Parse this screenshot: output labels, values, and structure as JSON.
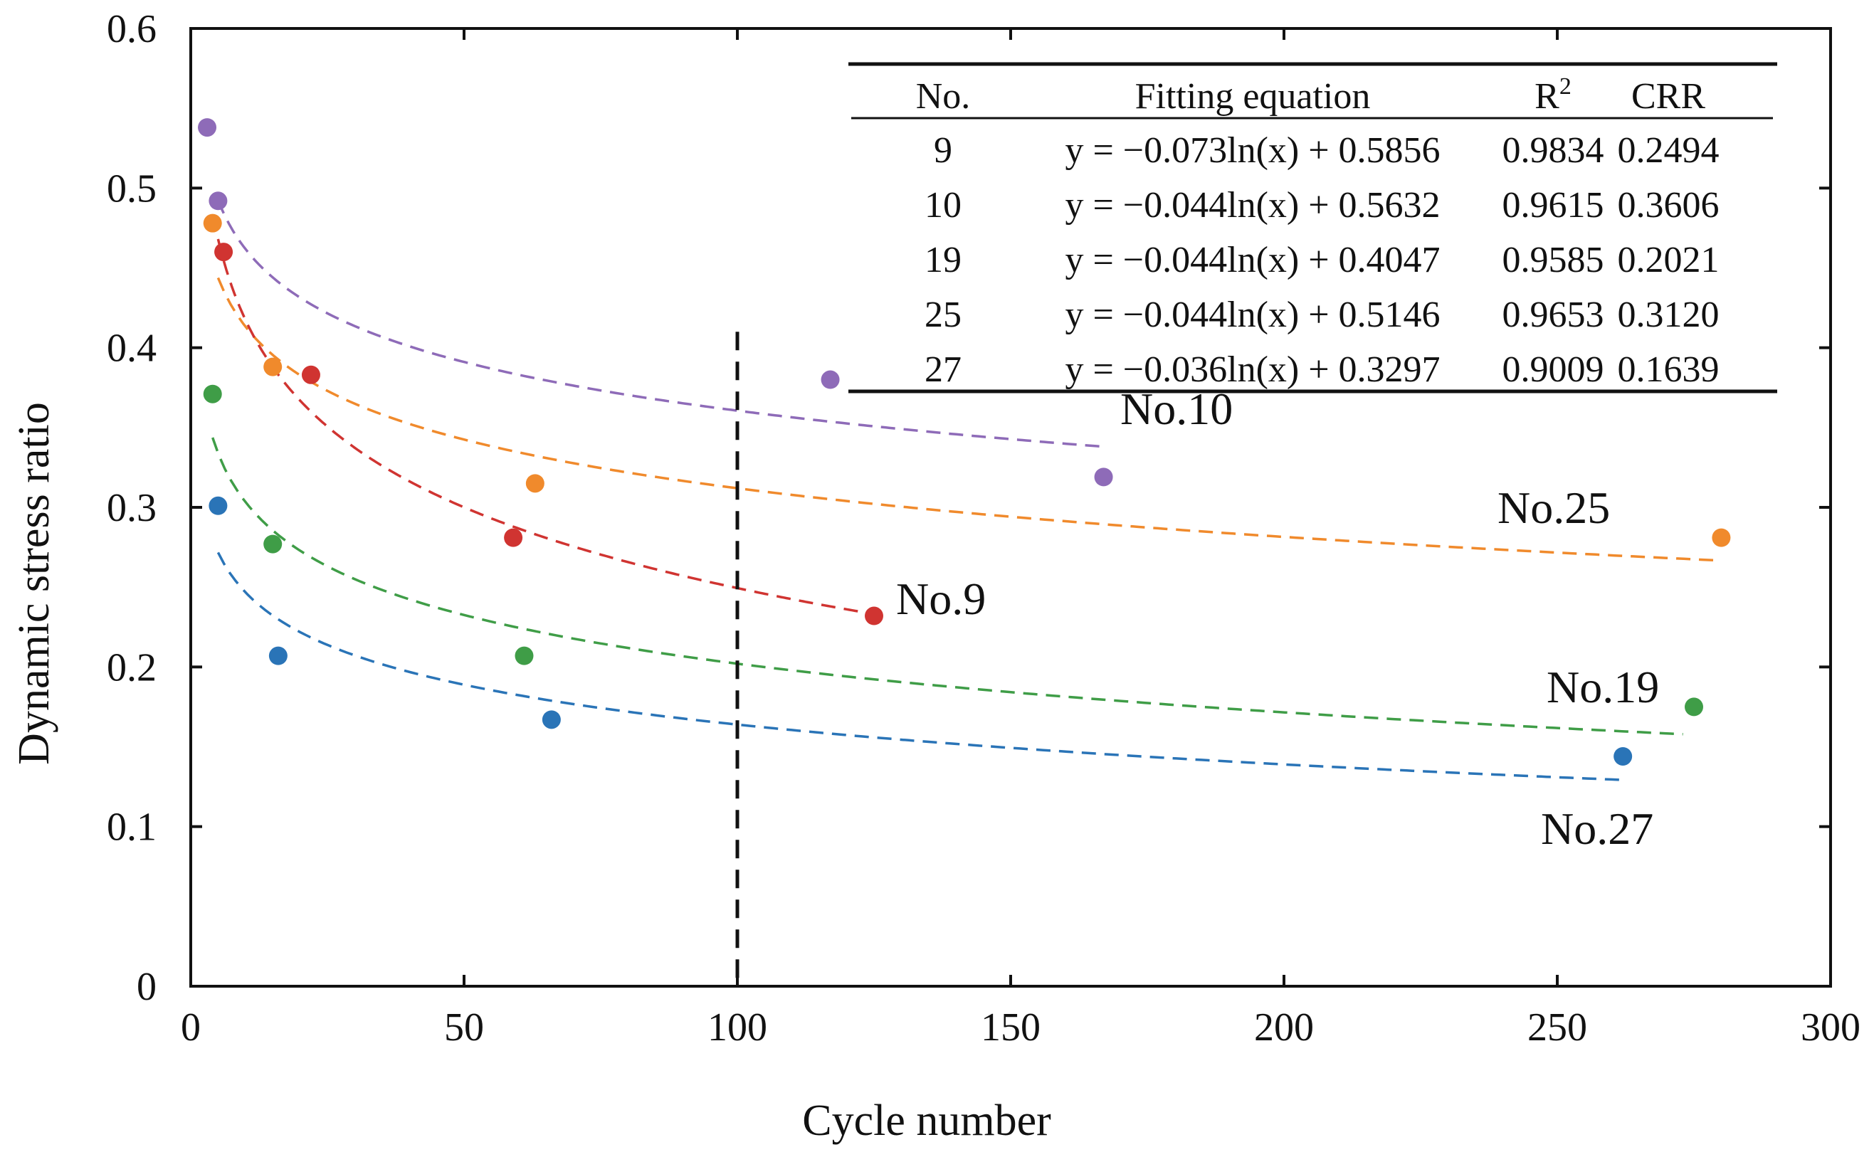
{
  "chart_data": {
    "type": "scatter",
    "title": "",
    "xlabel": "Cycle number",
    "ylabel": "Dynamic stress ratio",
    "xlim": [
      0,
      300
    ],
    "ylim": [
      0,
      0.6
    ],
    "xticks": [
      0,
      50,
      100,
      150,
      200,
      250,
      300
    ],
    "yticks": [
      0,
      0.1,
      0.2,
      0.3,
      0.4,
      0.5,
      0.6
    ],
    "xtick_labels": [
      "0",
      "50",
      "100",
      "150",
      "200",
      "250",
      "300"
    ],
    "ytick_labels": [
      "0",
      "0.1",
      "0.2",
      "0.3",
      "0.4",
      "0.5",
      "0.6"
    ],
    "reference_line_x": 100,
    "series": [
      {
        "name": "No.10",
        "label": "No.10",
        "color": "#8e6bb8",
        "points": [
          [
            3,
            0.538
          ],
          [
            5,
            0.492
          ],
          [
            117,
            0.38
          ],
          [
            167,
            0.319
          ]
        ],
        "fit": {
          "a": -0.044,
          "b": 0.5632,
          "x_from": 5,
          "x_to": 167
        }
      },
      {
        "name": "No.25",
        "label": "No.25",
        "color": "#f08a2c",
        "points": [
          [
            4,
            0.478
          ],
          [
            15,
            0.388
          ],
          [
            63,
            0.315
          ],
          [
            280,
            0.281
          ]
        ],
        "fit": {
          "a": -0.044,
          "b": 0.5146,
          "x_from": 5,
          "x_to": 280
        }
      },
      {
        "name": "No.9",
        "label": "No.9",
        "color": "#d03431",
        "points": [
          [
            6,
            0.46
          ],
          [
            22,
            0.383
          ],
          [
            59,
            0.281
          ],
          [
            125,
            0.232
          ]
        ],
        "fit": {
          "a": -0.073,
          "b": 0.5856,
          "x_from": 5,
          "x_to": 125
        }
      },
      {
        "name": "No.19",
        "label": "No.19",
        "color": "#3f9d47",
        "points": [
          [
            4,
            0.371
          ],
          [
            15,
            0.277
          ],
          [
            61,
            0.207
          ],
          [
            275,
            0.175
          ]
        ],
        "fit": {
          "a": -0.044,
          "b": 0.4047,
          "x_from": 4,
          "x_to": 273
        }
      },
      {
        "name": "No.27",
        "label": "No.27",
        "color": "#2a74b7",
        "points": [
          [
            5,
            0.301
          ],
          [
            16,
            0.207
          ],
          [
            66,
            0.167
          ],
          [
            262,
            0.144
          ]
        ],
        "fit": {
          "a": -0.036,
          "b": 0.3297,
          "x_from": 5,
          "x_to": 262
        }
      }
    ],
    "table": {
      "headers": [
        "No.",
        "Fitting equation",
        "R",
        "CRR"
      ],
      "r_superscript": "2",
      "rows": [
        [
          "9",
          "y = −0.073ln(x) + 0.5856",
          "0.9834",
          "0.2494"
        ],
        [
          "10",
          "y = −0.044ln(x) + 0.5632",
          "0.9615",
          "0.3606"
        ],
        [
          "19",
          "y = −0.044ln(x) + 0.4047",
          "0.9585",
          "0.2021"
        ],
        [
          "25",
          "y = −0.044ln(x) + 0.5146",
          "0.9653",
          "0.3120"
        ],
        [
          "27",
          "y = −0.036ln(x) + 0.3297",
          "0.9009",
          "0.1639"
        ]
      ]
    }
  }
}
